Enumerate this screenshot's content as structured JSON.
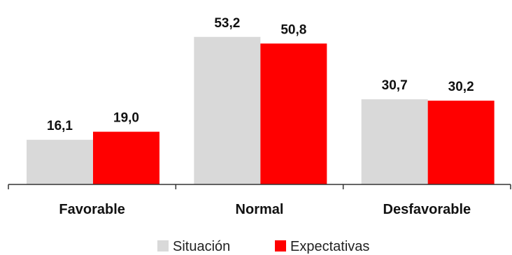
{
  "chart_data": {
    "type": "bar",
    "categories": [
      "Favorable",
      "Normal",
      "Desfavorable"
    ],
    "series": [
      {
        "name": "Situación",
        "values": [
          16.1,
          53.2,
          30.7
        ],
        "labels": [
          "16,1",
          "53,2",
          "30,7"
        ],
        "color": "#d9d9d9"
      },
      {
        "name": "Expectativas",
        "values": [
          19.0,
          50.8,
          30.2
        ],
        "labels": [
          "19,0",
          "50,8",
          "30,2"
        ],
        "color": "#ff0000"
      }
    ],
    "ylim": [
      0,
      60
    ],
    "grid": false,
    "legend_position": "bottom"
  }
}
